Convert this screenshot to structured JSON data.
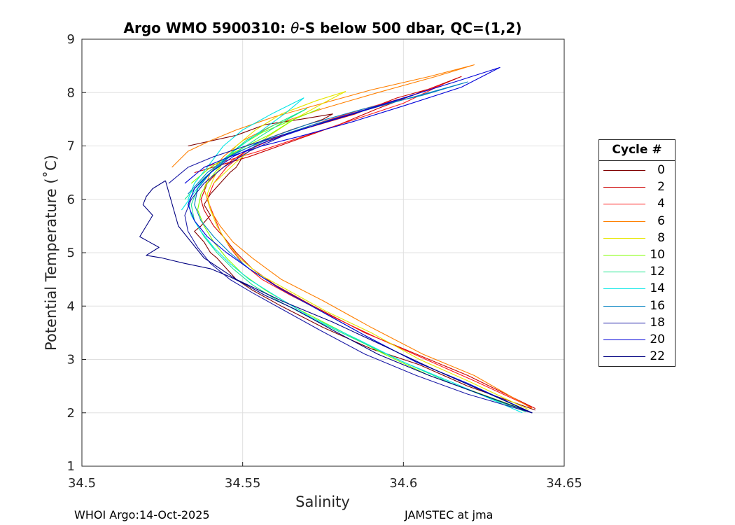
{
  "chart_data": {
    "type": "line",
    "title_prefix": "Argo WMO 5900310: ",
    "title_theta": "θ",
    "title_suffix": "-S below 500 dbar,  QC=(1,2)",
    "xlabel": "Salinity",
    "ylabel": "Potential Temperature (˚C)",
    "xlim": [
      34.5,
      34.65
    ],
    "ylim": [
      1,
      9
    ],
    "xticks": [
      "34.5",
      "34.55",
      "34.6",
      "34.65"
    ],
    "yticks": [
      "1",
      "2",
      "3",
      "4",
      "5",
      "6",
      "7",
      "8",
      "9"
    ],
    "grid": true,
    "legend_title": "Cycle #",
    "legend_position": "outside-right",
    "series": [
      {
        "name": "0",
        "color": "#7f0000",
        "x": [
          34.533,
          34.548,
          34.557,
          34.568,
          34.578,
          34.575,
          34.565,
          34.556,
          34.552,
          34.55,
          34.548,
          34.546,
          34.543,
          34.54,
          34.538,
          34.54,
          34.537,
          34.535,
          34.538,
          34.54,
          34.542,
          34.545,
          34.548,
          34.553,
          34.562,
          34.575,
          34.59,
          34.605,
          34.62,
          34.641
        ],
        "y": [
          7.0,
          7.2,
          7.4,
          7.5,
          7.6,
          7.5,
          7.3,
          7.1,
          6.9,
          6.8,
          6.6,
          6.5,
          6.3,
          6.1,
          5.9,
          5.7,
          5.5,
          5.4,
          5.2,
          5.0,
          4.9,
          4.7,
          4.5,
          4.3,
          4.0,
          3.6,
          3.2,
          2.9,
          2.5,
          2.05
        ]
      },
      {
        "name": "2",
        "color": "#cc0000",
        "x": [
          34.535,
          34.552,
          34.566,
          34.58,
          34.592,
          34.605,
          34.618,
          34.61,
          34.598,
          34.585,
          34.568,
          34.558,
          34.551,
          34.546,
          34.542,
          34.539,
          34.537,
          34.538,
          34.541,
          34.544,
          34.548,
          34.553,
          34.56,
          34.572,
          34.588,
          34.604,
          34.62,
          34.641
        ],
        "y": [
          6.5,
          6.8,
          7.1,
          7.4,
          7.7,
          8.0,
          8.3,
          8.1,
          7.9,
          7.6,
          7.3,
          7.1,
          6.9,
          6.7,
          6.5,
          6.3,
          6.0,
          5.8,
          5.5,
          5.3,
          5.0,
          4.7,
          4.4,
          4.0,
          3.5,
          3.1,
          2.7,
          2.08
        ]
      },
      {
        "name": "4",
        "color": "#ff1a1a",
        "x": [
          34.538,
          34.555,
          34.57,
          34.585,
          34.6,
          34.612,
          34.603,
          34.588,
          34.572,
          34.56,
          34.551,
          34.545,
          34.541,
          34.539,
          34.541,
          34.543,
          34.546,
          34.55,
          34.556,
          34.565,
          34.578,
          34.592,
          34.607,
          34.622,
          34.64
        ],
        "y": [
          6.6,
          6.9,
          7.2,
          7.5,
          7.8,
          8.15,
          7.95,
          7.7,
          7.4,
          7.15,
          6.9,
          6.6,
          6.3,
          6.0,
          5.7,
          5.4,
          5.1,
          4.8,
          4.5,
          4.2,
          3.8,
          3.4,
          3.0,
          2.6,
          2.1
        ]
      },
      {
        "name": "6",
        "color": "#ff7f00",
        "x": [
          34.528,
          34.533,
          34.54,
          34.548,
          34.56,
          34.575,
          34.59,
          34.608,
          34.622,
          34.61,
          34.592,
          34.575,
          34.56,
          34.55,
          34.544,
          34.54,
          34.538,
          34.54,
          34.543,
          34.547,
          34.553,
          34.562,
          34.575,
          34.59,
          34.606,
          34.622,
          34.64
        ],
        "y": [
          6.6,
          6.9,
          7.1,
          7.3,
          7.55,
          7.8,
          8.05,
          8.3,
          8.52,
          8.3,
          8.0,
          7.7,
          7.4,
          7.1,
          6.8,
          6.5,
          6.2,
          5.8,
          5.5,
          5.2,
          4.9,
          4.5,
          4.1,
          3.6,
          3.1,
          2.7,
          2.08
        ]
      },
      {
        "name": "8",
        "color": "#e6e600",
        "x": [
          34.541,
          34.548,
          34.556,
          34.566,
          34.575,
          34.582,
          34.573,
          34.562,
          34.554,
          34.548,
          34.544,
          34.541,
          34.539,
          34.54,
          34.542,
          34.545,
          34.549,
          34.555,
          34.564,
          34.576,
          34.59,
          34.605,
          34.62,
          34.639
        ],
        "y": [
          6.3,
          6.7,
          7.1,
          7.5,
          7.8,
          8.02,
          7.85,
          7.6,
          7.3,
          7.0,
          6.7,
          6.4,
          6.1,
          5.8,
          5.5,
          5.2,
          4.9,
          4.6,
          4.3,
          3.9,
          3.5,
          3.0,
          2.6,
          2.06
        ]
      },
      {
        "name": "10",
        "color": "#80ff00",
        "x": [
          34.534,
          34.54,
          34.548,
          34.558,
          34.566,
          34.574,
          34.566,
          34.556,
          34.549,
          34.544,
          34.54,
          34.537,
          34.536,
          34.538,
          34.541,
          34.545,
          34.55,
          34.557,
          34.567,
          34.58,
          34.594,
          34.608,
          34.622,
          34.639
        ],
        "y": [
          6.3,
          6.6,
          6.9,
          7.2,
          7.5,
          7.7,
          7.5,
          7.25,
          7.0,
          6.7,
          6.4,
          6.1,
          5.8,
          5.5,
          5.2,
          4.9,
          4.6,
          4.3,
          3.95,
          3.55,
          3.1,
          2.7,
          2.4,
          2.03
        ]
      },
      {
        "name": "12",
        "color": "#1ae68c",
        "x": [
          34.532,
          34.538,
          34.546,
          34.556,
          34.564,
          34.57,
          34.56,
          34.551,
          34.545,
          34.54,
          34.536,
          34.534,
          34.535,
          34.538,
          34.542,
          34.547,
          34.553,
          34.561,
          34.572,
          34.586,
          34.6,
          34.615,
          34.638
        ],
        "y": [
          6.0,
          6.4,
          6.8,
          7.2,
          7.5,
          7.7,
          7.4,
          7.1,
          6.8,
          6.5,
          6.2,
          5.9,
          5.6,
          5.3,
          5.0,
          4.7,
          4.4,
          4.1,
          3.75,
          3.35,
          2.95,
          2.55,
          2.02
        ]
      },
      {
        "name": "14",
        "color": "#00e6e6",
        "x": [
          34.531,
          34.537,
          34.545,
          34.555,
          34.563,
          34.569,
          34.559,
          34.55,
          34.544,
          34.539,
          34.535,
          34.533,
          34.534,
          34.537,
          34.541,
          34.546,
          34.552,
          34.56,
          34.571,
          34.585,
          34.6,
          34.616,
          34.637
        ],
        "y": [
          5.8,
          6.3,
          6.8,
          7.25,
          7.6,
          7.9,
          7.6,
          7.3,
          7.0,
          6.6,
          6.3,
          6.0,
          5.7,
          5.4,
          5.1,
          4.8,
          4.5,
          4.2,
          3.8,
          3.4,
          2.95,
          2.55,
          2.0
        ]
      },
      {
        "name": "16",
        "color": "#0080c0",
        "x": [
          34.533,
          34.539,
          34.547,
          34.557,
          34.572,
          34.59,
          34.608,
          34.62,
          34.606,
          34.588,
          34.57,
          34.556,
          34.546,
          34.54,
          34.536,
          34.535,
          34.537,
          34.541,
          34.546,
          34.552,
          34.561,
          34.573,
          34.588,
          34.604,
          34.62,
          34.64
        ],
        "y": [
          6.1,
          6.5,
          6.85,
          7.1,
          7.4,
          7.7,
          8.0,
          8.2,
          7.95,
          7.7,
          7.4,
          7.1,
          6.8,
          6.5,
          6.2,
          5.9,
          5.6,
          5.3,
          5.0,
          4.7,
          4.35,
          3.95,
          3.45,
          2.95,
          2.55,
          2.0
        ]
      },
      {
        "name": "18",
        "color": "#1a1aa6",
        "x": [
          34.527,
          34.533,
          34.541,
          34.551,
          34.562,
          34.576,
          34.59,
          34.603,
          34.592,
          34.578,
          34.563,
          34.552,
          34.544,
          34.538,
          34.534,
          34.532,
          34.533,
          34.536,
          34.54,
          34.546,
          34.553,
          34.562,
          34.574,
          34.588,
          34.604,
          34.62,
          34.64
        ],
        "y": [
          6.3,
          6.6,
          6.8,
          7.0,
          7.2,
          7.45,
          7.7,
          7.95,
          7.75,
          7.5,
          7.2,
          6.9,
          6.6,
          6.3,
          6.0,
          5.7,
          5.4,
          5.1,
          4.8,
          4.5,
          4.25,
          3.95,
          3.55,
          3.1,
          2.7,
          2.35,
          2.0
        ]
      },
      {
        "name": "20",
        "color": "#0000d9",
        "x": [
          34.532,
          34.538,
          34.546,
          34.556,
          34.569,
          34.584,
          34.6,
          34.618,
          34.63,
          34.616,
          34.6,
          34.584,
          34.568,
          34.556,
          34.547,
          34.54,
          34.535,
          34.533,
          34.535,
          34.539,
          34.545,
          34.552,
          34.561,
          34.573,
          34.588,
          34.604,
          34.62,
          34.64
        ],
        "y": [
          6.3,
          6.6,
          6.8,
          7.0,
          7.2,
          7.45,
          7.75,
          8.1,
          8.47,
          8.2,
          7.9,
          7.6,
          7.3,
          7.05,
          6.8,
          6.5,
          6.2,
          5.9,
          5.6,
          5.3,
          5.0,
          4.7,
          4.35,
          3.95,
          3.45,
          2.95,
          2.55,
          2.0
        ]
      },
      {
        "name": "22",
        "color": "#000080",
        "x": [
          34.526,
          34.522,
          34.52,
          34.519,
          34.522,
          34.52,
          34.518,
          34.521,
          34.524,
          34.52,
          34.525,
          34.532,
          34.54,
          34.546,
          34.551,
          34.557,
          34.566,
          34.578,
          34.592,
          34.608,
          34.624,
          34.64,
          34.625,
          34.61,
          34.594,
          34.578,
          34.562,
          34.548,
          34.538,
          34.53,
          34.526
        ],
        "y": [
          6.35,
          6.2,
          6.05,
          5.9,
          5.7,
          5.5,
          5.3,
          5.2,
          5.1,
          4.95,
          4.9,
          4.8,
          4.7,
          4.55,
          4.4,
          4.2,
          3.95,
          3.55,
          3.1,
          2.7,
          2.35,
          2.0,
          2.4,
          2.8,
          3.25,
          3.7,
          4.1,
          4.5,
          4.9,
          5.5,
          6.35
        ]
      }
    ]
  },
  "footer": {
    "left": "WHOI Argo:14-Oct-2025",
    "right": "JAMSTEC at jma"
  }
}
